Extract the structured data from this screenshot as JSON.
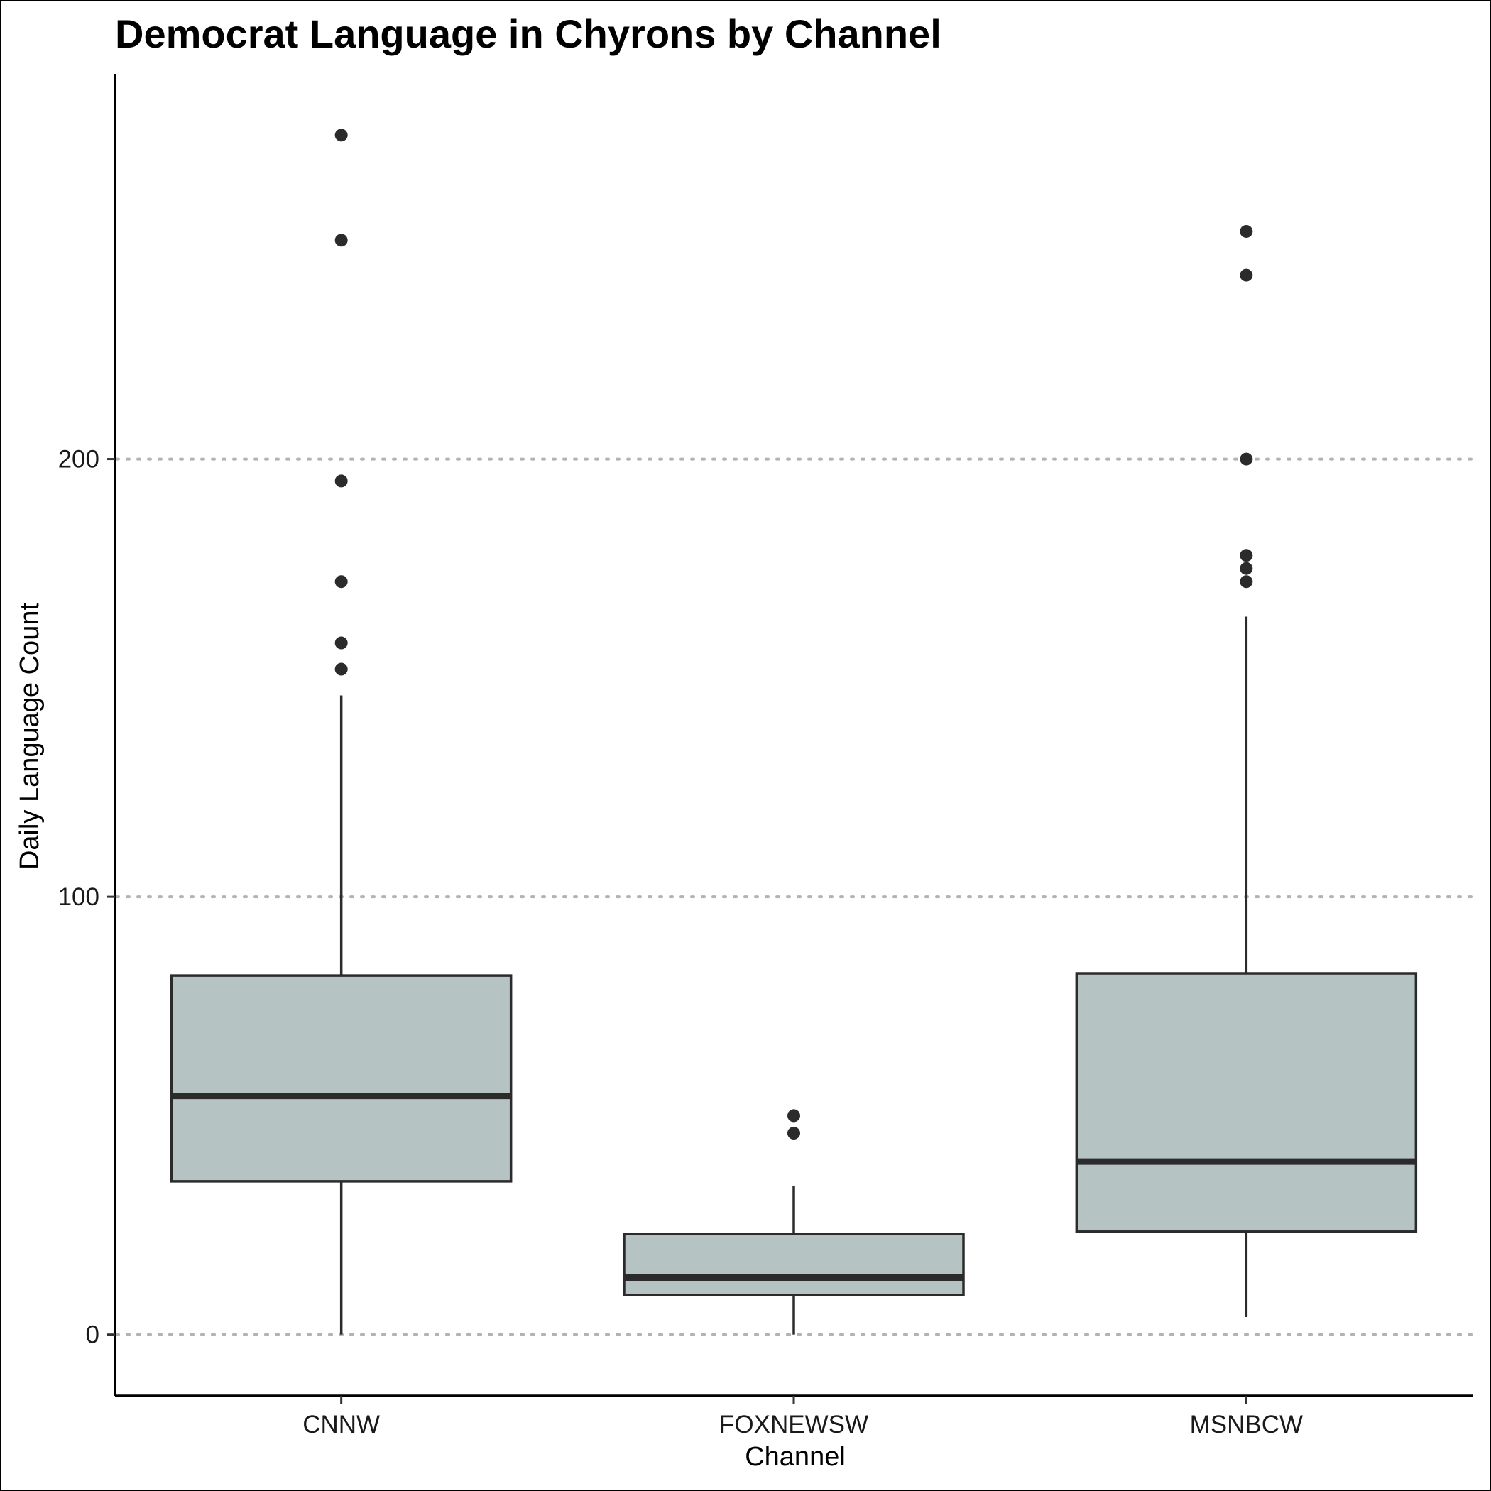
{
  "chart_data": {
    "type": "boxplot",
    "title": "Democrat Language in Chyrons by Channel",
    "xlabel": "Channel",
    "ylabel": "Daily Language Count",
    "ylim": [
      -14,
      288
    ],
    "yticks": [
      0,
      100,
      200
    ],
    "y_tick_labels": [
      "0",
      "100",
      "200"
    ],
    "grid": "horizontal dotted at y ticks",
    "legend": "none",
    "box_fill": "#b5c3c3",
    "line_color": "#2b2b2b",
    "categories": [
      "CNNW",
      "FOXNEWSW",
      "MSNBCW"
    ],
    "boxes": [
      {
        "name": "CNNW",
        "whisker_low": 0,
        "q1": 35,
        "median": 54.5,
        "q3": 82,
        "whisker_high": 146,
        "outliers": [
          152,
          158,
          172,
          195,
          250,
          274
        ]
      },
      {
        "name": "FOXNEWSW",
        "whisker_low": 0,
        "q1": 9,
        "median": 13,
        "q3": 23,
        "whisker_high": 34,
        "outliers": [
          46,
          50
        ]
      },
      {
        "name": "MSNBCW",
        "whisker_low": 4,
        "q1": 23.5,
        "median": 39.5,
        "q3": 82.5,
        "whisker_high": 164,
        "outliers": [
          172,
          175,
          178,
          200,
          242,
          252
        ]
      }
    ]
  }
}
